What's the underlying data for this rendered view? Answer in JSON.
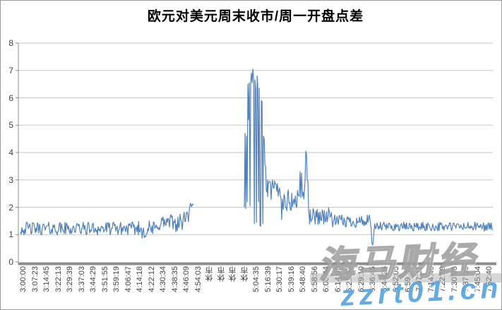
{
  "chart": {
    "title": "欧元对美元周末收市/周一开盘点差"
  },
  "watermark": {
    "brand": "海马财经",
    "url": "zzrt01.cn",
    "url_color": "#52a2de"
  },
  "chart_data": {
    "type": "line",
    "title": "欧元对美元周末收市/周一开盘点差",
    "xlabel": "",
    "ylabel": "",
    "ylim": [
      0,
      8
    ],
    "yticks": [
      0,
      1,
      2,
      3,
      4,
      5,
      6,
      7,
      8
    ],
    "grid": true,
    "legend": false,
    "line_color": "#4F81BD",
    "grid_color": "#c6c6c6",
    "axis_color": "#8c8c8c",
    "x_tick_labels": [
      "3:00:00",
      "3:07:23",
      "3:14:45",
      "3:22:13",
      "3:29:39",
      "3:37:03",
      "3:44:29",
      "3:51:55",
      "3:59:19",
      "4:06:47",
      "4:14:18",
      "4:22:12",
      "4:30:34",
      "4:38:35",
      "4:46:09",
      "4:54:03",
      "休市",
      "休市",
      "休市",
      "休市",
      "5:04:35",
      "5:16:39",
      "5:30:17",
      "5:39:16",
      "5:48:40",
      "5:58:56",
      "6:06:44",
      "6:14:08",
      "6:21:43",
      "6:29:10",
      "6:36:45",
      "6:44:26",
      "6:52:05",
      "6:59:40",
      "7:07:11",
      "7:14:40",
      "7:22:19",
      "7:30:06",
      "7:37:33",
      "7:45:04",
      "7:52:40"
    ],
    "closed_market_label": "休市",
    "gap": {
      "x0": 0.366,
      "x1": 0.474
    },
    "peak_value": 7.05,
    "paths": [
      {
        "segments": [
          {
            "type": "noise",
            "x0": 0.0,
            "x1": 0.25,
            "min": 0.98,
            "max": 1.46
          },
          {
            "type": "noise",
            "x0": 0.25,
            "x1": 0.29,
            "min": 0.85,
            "max": 1.52
          },
          {
            "type": "noise",
            "x0": 0.29,
            "x1": 0.345,
            "min": 1.1,
            "max": 1.76
          },
          {
            "type": "noise",
            "x0": 0.345,
            "x1": 0.356,
            "min": 1.42,
            "max": 1.85
          },
          {
            "type": "points",
            "pts": [
              [
                0.357,
                1.8
              ],
              [
                0.358,
                2.0
              ],
              [
                0.36,
                2.15
              ],
              [
                0.362,
                2.02
              ],
              [
                0.364,
                2.12
              ],
              [
                0.366,
                2.08
              ]
            ]
          }
        ]
      },
      {
        "segments": [
          {
            "type": "points",
            "pts": [
              [
                0.474,
                2.0
              ],
              [
                0.4755,
                4.7
              ],
              [
                0.477,
                1.95
              ],
              [
                0.4785,
                4.6
              ],
              [
                0.48,
                2.2
              ],
              [
                0.4815,
                6.5
              ],
              [
                0.483,
                5.2
              ],
              [
                0.4845,
                6.55
              ],
              [
                0.486,
                2.05
              ],
              [
                0.4875,
                6.6
              ],
              [
                0.489,
                6.9
              ],
              [
                0.4905,
                6.55
              ],
              [
                0.492,
                7.05
              ],
              [
                0.4935,
                6.7
              ],
              [
                0.495,
                1.4
              ],
              [
                0.4965,
                6.65
              ],
              [
                0.498,
                6.3
              ],
              [
                0.4995,
                1.45
              ],
              [
                0.501,
                6.8
              ],
              [
                0.5025,
                6.4
              ],
              [
                0.504,
                2.2
              ],
              [
                0.5055,
                6.35
              ],
              [
                0.507,
                1.35
              ],
              [
                0.5085,
                1.3
              ],
              [
                0.51,
                5.9
              ],
              [
                0.5115,
                5.85
              ],
              [
                0.513,
                1.4
              ],
              [
                0.5145,
                4.6
              ],
              [
                0.516,
                4.5
              ],
              [
                0.5175,
                3.55
              ],
              [
                0.519,
                3.5
              ],
              [
                0.5205,
                2.6
              ],
              [
                0.522,
                2.55
              ],
              [
                0.5232,
                3.0
              ]
            ]
          },
          {
            "type": "noise",
            "x0": 0.5232,
            "x1": 0.552,
            "min": 2.2,
            "max": 3.05
          },
          {
            "type": "points",
            "pts": [
              [
                0.553,
                1.55
              ],
              [
                0.5545,
                2.3
              ]
            ]
          },
          {
            "type": "noise",
            "x0": 0.555,
            "x1": 0.589,
            "min": 1.8,
            "max": 2.65
          },
          {
            "type": "points",
            "pts": [
              [
                0.5905,
                2.4
              ],
              [
                0.592,
                3.3
              ],
              [
                0.5935,
                2.35
              ],
              [
                0.595,
                3.25
              ],
              [
                0.597,
                2.4
              ],
              [
                0.5985,
                2.55
              ],
              [
                0.6,
                2.3
              ],
              [
                0.6025,
                3.0
              ],
              [
                0.604,
                4.05
              ],
              [
                0.6055,
                3.95
              ],
              [
                0.607,
                3.0
              ],
              [
                0.6085,
                2.95
              ],
              [
                0.61,
                1.9
              ],
              [
                0.6115,
                1.6
              ]
            ]
          },
          {
            "type": "noise",
            "x0": 0.612,
            "x1": 0.661,
            "min": 1.35,
            "max": 2.0
          },
          {
            "type": "noise",
            "x0": 0.661,
            "x1": 0.741,
            "min": 1.25,
            "max": 1.72
          },
          {
            "type": "points",
            "pts": [
              [
                0.7425,
                1.2
              ],
              [
                0.744,
                0.68
              ],
              [
                0.7455,
                0.62
              ],
              [
                0.747,
                0.75
              ],
              [
                0.7485,
                1.15
              ]
            ]
          },
          {
            "type": "noise",
            "x0": 0.75,
            "x1": 1.0,
            "min": 1.12,
            "max": 1.46
          }
        ]
      }
    ]
  }
}
